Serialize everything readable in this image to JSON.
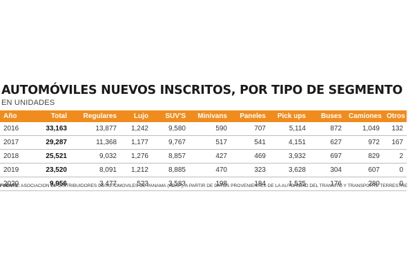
{
  "chart_data": {
    "type": "table",
    "title": "AUTOMÓVILES NUEVOS INSCRITOS, POR TIPO DE SEGMENTO",
    "subtitle": "EN UNIDADES",
    "columns": [
      "Año",
      "Total",
      "Regulares",
      "Lujo",
      "SUV'S",
      "Minivans",
      "Paneles",
      "Pick ups",
      "Buses",
      "Camiones",
      "Otros"
    ],
    "rows": [
      [
        "2016",
        "33,163",
        "13,877",
        "1,242",
        "9,580",
        "590",
        "707",
        "5,114",
        "872",
        "1,049",
        "132"
      ],
      [
        "2017",
        "29,287",
        "11,368",
        "1,177",
        "9,767",
        "517",
        "541",
        "4,151",
        "627",
        "972",
        "167"
      ],
      [
        "2018",
        "25,521",
        "9,032",
        "1,276",
        "8,857",
        "427",
        "469",
        "3,932",
        "697",
        "829",
        "2"
      ],
      [
        "2019",
        "23,520",
        "8,091",
        "1,212",
        "8,885",
        "470",
        "323",
        "3,628",
        "304",
        "607",
        "0"
      ],
      [
        "2020",
        "9,956",
        "3,477",
        "523",
        "3,583",
        "198",
        "184",
        "1,535",
        "176",
        "280",
        "0"
      ]
    ],
    "source_label": "FUENTE:",
    "source_text": " ASOCIACIÓN DE DISTRIBUIDORES DE AUTOMÓVILES DE PANAMÁ (ADAP), A PARTIR DE DATOS PROVENIENTES DE LA AUTORIDAD DEL TRÁNSITO Y TRANSPORTE TERRESTRE"
  },
  "colors": {
    "header_background": "#f08c1e",
    "text": "#333333",
    "row_divider": "#bdbdbd"
  }
}
